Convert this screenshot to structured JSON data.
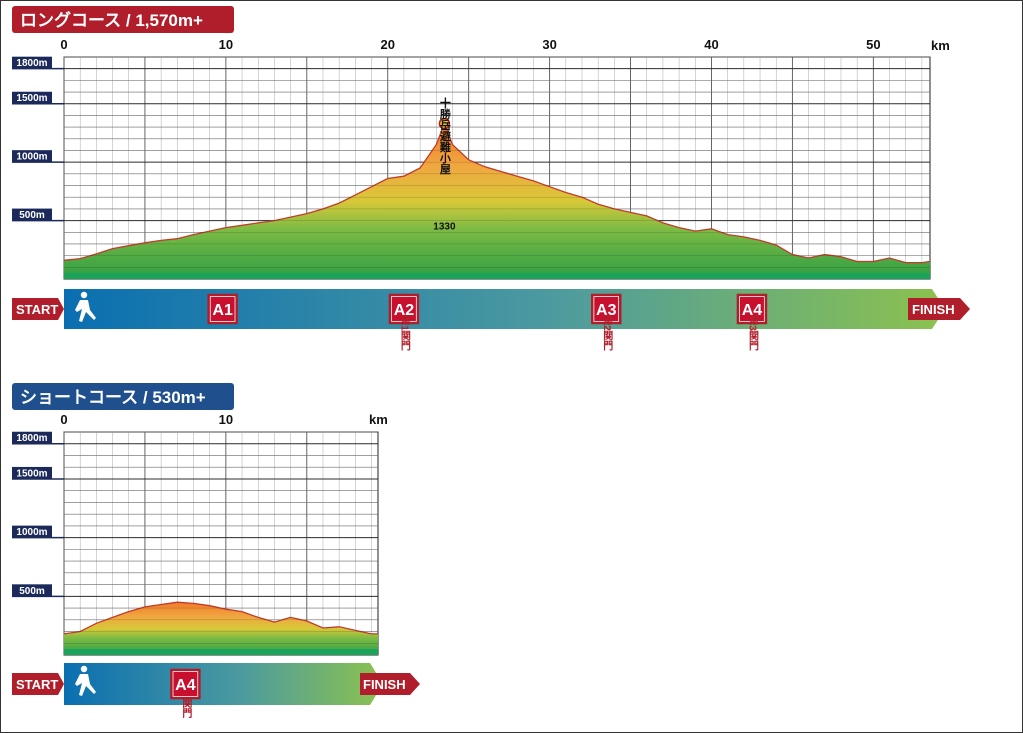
{
  "chart_data": [
    {
      "type": "area",
      "title": "ロングコース / 1,570m+",
      "title_color": "#b11e2b",
      "x_unit": "km",
      "xlim": [
        0,
        53.5
      ],
      "x_ticks": [
        "0",
        "10",
        "20",
        "30",
        "40",
        "50"
      ],
      "ylim": [
        0,
        1900
      ],
      "y_tick_labels": [
        "1800m",
        "1500m",
        "1000m",
        "500m"
      ],
      "y_tick_values": [
        1800,
        1500,
        1000,
        500
      ],
      "grid": true,
      "x": [
        0,
        1,
        2,
        3,
        4,
        5,
        6,
        7,
        8,
        9,
        10,
        11,
        12,
        13,
        14,
        15,
        16,
        17,
        18,
        19,
        20,
        21,
        22,
        23,
        23.5,
        24,
        25,
        26,
        27,
        28,
        29,
        30,
        31,
        32,
        33,
        34,
        35,
        36,
        37,
        38,
        39,
        40,
        41,
        42,
        43,
        44,
        45,
        46,
        47,
        48,
        49,
        50,
        51,
        52,
        53,
        53.5
      ],
      "elevation": [
        160,
        175,
        215,
        260,
        285,
        310,
        330,
        345,
        380,
        410,
        440,
        460,
        480,
        500,
        530,
        560,
        600,
        650,
        720,
        790,
        860,
        880,
        950,
        1150,
        1330,
        1150,
        1020,
        960,
        920,
        880,
        840,
        790,
        740,
        700,
        640,
        600,
        570,
        540,
        480,
        440,
        410,
        430,
        380,
        360,
        330,
        290,
        210,
        180,
        210,
        190,
        150,
        150,
        180,
        140,
        140,
        150
      ],
      "summit": {
        "name": "十勝岳避難小屋",
        "elevation_label": "1330",
        "x": 23.5,
        "elevation": 1330
      },
      "aid_stations": [
        {
          "label": "A1",
          "x": 9.8,
          "note": ""
        },
        {
          "label": "A2",
          "x": 21,
          "note": "第1関門"
        },
        {
          "label": "A3",
          "x": 33.5,
          "note": "第2関門"
        },
        {
          "label": "A4",
          "x": 42.5,
          "note": "第3関門"
        }
      ],
      "start_label": "START",
      "finish_label": "FINISH"
    },
    {
      "type": "area",
      "title": "ショートコース / 530m+",
      "title_color": "#1f4f8c",
      "x_unit": "km",
      "xlim": [
        0,
        19.4
      ],
      "x_ticks": [
        "0",
        "10"
      ],
      "ylim": [
        0,
        1900
      ],
      "y_tick_labels": [
        "1800m",
        "1500m",
        "1000m",
        "500m"
      ],
      "y_tick_values": [
        1800,
        1500,
        1000,
        500
      ],
      "grid": true,
      "x": [
        0,
        1,
        2,
        3,
        4,
        5,
        6,
        7,
        8,
        9,
        10,
        11,
        12,
        13,
        14,
        15,
        16,
        17,
        18,
        19,
        19.4
      ],
      "elevation": [
        180,
        200,
        270,
        320,
        370,
        410,
        430,
        450,
        440,
        420,
        390,
        370,
        320,
        280,
        320,
        290,
        230,
        240,
        210,
        180,
        180
      ],
      "aid_stations": [
        {
          "label": "A4",
          "x": 7.5,
          "note": "関門"
        }
      ],
      "start_label": "START",
      "finish_label": "FINISH"
    }
  ]
}
